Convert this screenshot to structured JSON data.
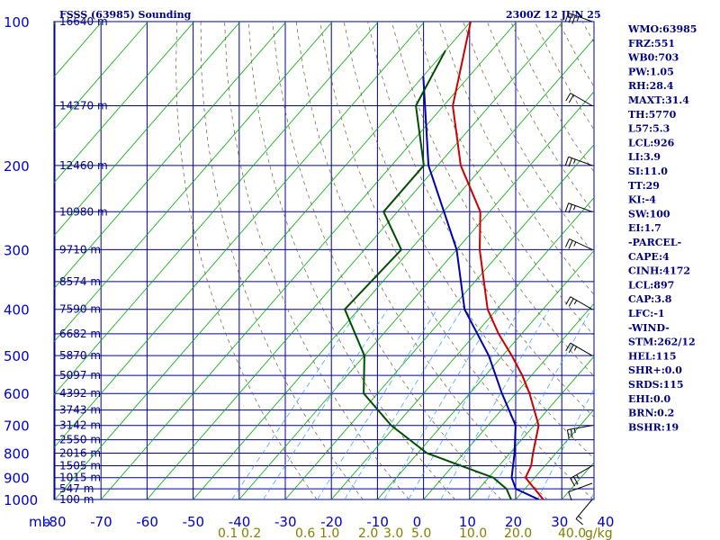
{
  "header": {
    "title": "FSSS (63985) Sounding",
    "time": "2300Z 12 JUN 25"
  },
  "chart_data": {
    "type": "line",
    "title": "FSSS (63985) Sounding",
    "pressure_axis_unit": "mb",
    "pressure_ticks": [
      100,
      200,
      300,
      400,
      500,
      600,
      700,
      800,
      900,
      1000
    ],
    "temperature_ticks": [
      -80,
      -70,
      -60,
      -50,
      -40,
      -30,
      -20,
      -10,
      0,
      10,
      20,
      30,
      40
    ],
    "mixing_ratio_labels": [
      "0.1",
      "0.2",
      "0.6",
      "1.0",
      "2.0",
      "3.0",
      "5.0",
      "10.0",
      "20.0",
      "40.0"
    ],
    "mixing_ratio_unit": "g/kg",
    "height_labels": [
      {
        "p": 100,
        "label": "16640 m"
      },
      {
        "p": 150,
        "label": "14270 m"
      },
      {
        "p": 200,
        "label": "12460 m"
      },
      {
        "p": 250,
        "label": "10980 m"
      },
      {
        "p": 300,
        "label": "9710 m"
      },
      {
        "p": 350,
        "label": "8574 m"
      },
      {
        "p": 400,
        "label": "7590 m"
      },
      {
        "p": 450,
        "label": "6682 m"
      },
      {
        "p": 500,
        "label": "5870 m"
      },
      {
        "p": 550,
        "label": "5097 m"
      },
      {
        "p": 600,
        "label": "4392 m"
      },
      {
        "p": 650,
        "label": "3743 m"
      },
      {
        "p": 700,
        "label": "3142 m"
      },
      {
        "p": 750,
        "label": "2550 m"
      },
      {
        "p": 800,
        "label": "2016 m"
      },
      {
        "p": 850,
        "label": "1505 m"
      },
      {
        "p": 900,
        "label": "1015 m"
      },
      {
        "p": 950,
        "label": "547 m"
      },
      {
        "p": 1000,
        "label": "100 m"
      }
    ],
    "series": [
      {
        "key": "temperature",
        "color": "#cc0000",
        "points": [
          [
            100,
            -80
          ],
          [
            150,
            -68
          ],
          [
            200,
            -55
          ],
          [
            250,
            -42
          ],
          [
            300,
            -35
          ],
          [
            400,
            -22
          ],
          [
            450,
            -15
          ],
          [
            500,
            -8
          ],
          [
            550,
            -2
          ],
          [
            600,
            3
          ],
          [
            700,
            11
          ],
          [
            800,
            15
          ],
          [
            850,
            17
          ],
          [
            900,
            18
          ],
          [
            1000,
            26
          ]
        ]
      },
      {
        "key": "parcel",
        "color": "#0000aa",
        "points": [
          [
            130,
            -80
          ],
          [
            200,
            -62
          ],
          [
            300,
            -40
          ],
          [
            400,
            -27
          ],
          [
            500,
            -13
          ],
          [
            600,
            -3
          ],
          [
            700,
            6
          ],
          [
            800,
            11
          ],
          [
            900,
            15
          ],
          [
            950,
            18
          ],
          [
            1000,
            25
          ]
        ]
      },
      {
        "key": "dewpoint",
        "color": "#004d00",
        "points": [
          [
            115,
            -80
          ],
          [
            150,
            -76
          ],
          [
            200,
            -63
          ],
          [
            250,
            -63
          ],
          [
            300,
            -52
          ],
          [
            400,
            -53
          ],
          [
            500,
            -40
          ],
          [
            600,
            -33
          ],
          [
            700,
            -21
          ],
          [
            800,
            -8
          ],
          [
            900,
            11
          ],
          [
            950,
            16
          ],
          [
            1000,
            19
          ]
        ]
      }
    ],
    "wind_barbs": [
      {
        "p": 100,
        "dir": 290,
        "kt": 25
      },
      {
        "p": 150,
        "dir": 300,
        "kt": 20
      },
      {
        "p": 200,
        "dir": 290,
        "kt": 15
      },
      {
        "p": 250,
        "dir": 290,
        "kt": 15
      },
      {
        "p": 300,
        "dir": 295,
        "kt": 15
      },
      {
        "p": 400,
        "dir": 300,
        "kt": 15
      },
      {
        "p": 500,
        "dir": 300,
        "kt": 15
      },
      {
        "p": 700,
        "dir": 260,
        "kt": 15
      },
      {
        "p": 850,
        "dir": 240,
        "kt": 15
      },
      {
        "p": 925,
        "dir": 250,
        "kt": 10
      },
      {
        "p": 1000,
        "dir": 220,
        "kt": 5
      }
    ]
  },
  "indices": [
    "WMO:63985",
    "FRZ:551",
    "WB0:703",
    "PW:1.05",
    "RH:28.4",
    "MAXT:31.4",
    "TH:5770",
    "L57:5.3",
    "LCL:926",
    "LI:3.9",
    "SI:11.0",
    "TT:29",
    "KI:-4",
    "SW:100",
    "EI:1.7",
    "-PARCEL-",
    "CAPE:4",
    "CINH:4172",
    "LCL:897",
    "CAP:3.8",
    "LFC:-1",
    "-WIND-",
    "STM:262/12",
    "HEL:115",
    "SHR+:0.0",
    "SRDS:115",
    "EHI:0.0",
    "BRN:0.2",
    "BSHR:19"
  ],
  "colors": {
    "grid": "#000099",
    "isotherm": "#00aa00",
    "dry_adiabat": "#6b5b3a",
    "mixing_ratio": "#3399ff",
    "labels": "#0000cc"
  }
}
